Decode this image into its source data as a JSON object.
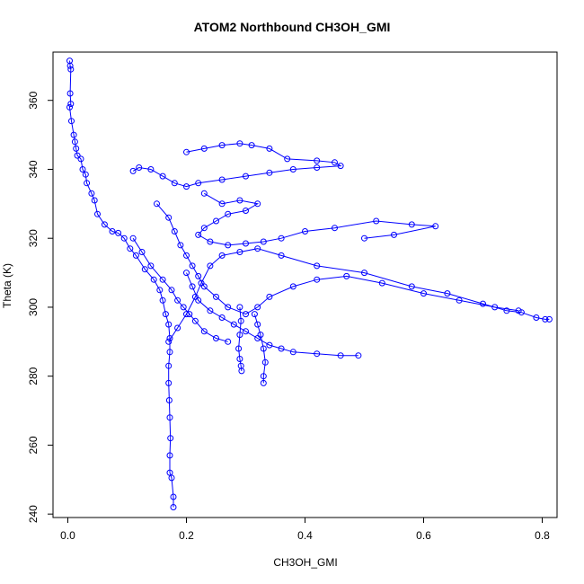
{
  "chart_data": {
    "type": "scatter",
    "title": "ATOM2 Northbound CH3OH_GMI",
    "xlabel": "CH3OH_GMI",
    "ylabel": "Theta (K)",
    "xlim": [
      -0.025,
      0.825
    ],
    "ylim": [
      239.0,
      374.0
    ],
    "xticks": [
      "0.0",
      "0.2",
      "0.4",
      "0.6",
      "0.8"
    ],
    "yticks": [
      "240",
      "260",
      "280",
      "300",
      "320",
      "340",
      "360"
    ],
    "grid": false,
    "legend": "none",
    "series": [
      {
        "marker": "open-circle",
        "line": true,
        "color": "#0000ff",
        "points": [
          [
            0.003,
            371.5
          ],
          [
            0.004,
            370.0
          ],
          [
            0.005,
            369.0
          ],
          [
            0.004,
            362.0
          ],
          [
            0.005,
            359.0
          ],
          [
            0.003,
            358.0
          ],
          [
            0.006,
            354.0
          ],
          [
            0.01,
            350.0
          ],
          [
            0.012,
            348.0
          ],
          [
            0.014,
            346.0
          ],
          [
            0.016,
            344.0
          ],
          [
            0.022,
            343.0
          ],
          [
            0.025,
            340.0
          ],
          [
            0.03,
            338.5
          ],
          [
            0.032,
            336.0
          ],
          [
            0.04,
            333.0
          ],
          [
            0.045,
            331.0
          ],
          [
            0.05,
            327.0
          ],
          [
            0.062,
            324.0
          ],
          [
            0.075,
            322.0
          ],
          [
            0.085,
            321.5
          ],
          [
            0.095,
            320.0
          ],
          [
            0.105,
            317.0
          ],
          [
            0.115,
            315.0
          ],
          [
            0.13,
            311.0
          ],
          [
            0.145,
            308.0
          ],
          [
            0.155,
            305.0
          ],
          [
            0.16,
            302.0
          ],
          [
            0.165,
            298.0
          ],
          [
            0.17,
            295.0
          ],
          [
            0.172,
            291.0
          ],
          [
            0.172,
            287.0
          ],
          [
            0.17,
            283.0
          ],
          [
            0.17,
            278.0
          ],
          [
            0.171,
            273.0
          ],
          [
            0.172,
            268.0
          ],
          [
            0.173,
            262.0
          ],
          [
            0.172,
            257.0
          ],
          [
            0.172,
            252.0
          ],
          [
            0.175,
            250.5
          ],
          [
            0.178,
            245.0
          ],
          [
            0.178,
            242.0
          ]
        ]
      },
      {
        "marker": "open-circle",
        "line": true,
        "color": "#0000ff",
        "points": [
          [
            0.17,
            290.0
          ],
          [
            0.185,
            294.0
          ],
          [
            0.2,
            298.0
          ],
          [
            0.215,
            303.0
          ],
          [
            0.225,
            307.0
          ],
          [
            0.24,
            312.0
          ],
          [
            0.26,
            315.0
          ],
          [
            0.29,
            316.0
          ],
          [
            0.32,
            317.0
          ],
          [
            0.36,
            315.0
          ],
          [
            0.42,
            312.0
          ],
          [
            0.5,
            310.0
          ],
          [
            0.58,
            306.0
          ],
          [
            0.64,
            304.0
          ],
          [
            0.7,
            301.0
          ],
          [
            0.74,
            299.0
          ],
          [
            0.765,
            298.5
          ],
          [
            0.79,
            297.0
          ],
          [
            0.805,
            296.5
          ],
          [
            0.812,
            296.5
          ]
        ]
      },
      {
        "marker": "open-circle",
        "line": true,
        "color": "#0000ff",
        "points": [
          [
            0.2,
            345.0
          ],
          [
            0.23,
            346.0
          ],
          [
            0.26,
            347.0
          ],
          [
            0.29,
            347.5
          ],
          [
            0.31,
            347.0
          ],
          [
            0.34,
            346.0
          ],
          [
            0.37,
            343.0
          ],
          [
            0.42,
            342.5
          ],
          [
            0.45,
            342.0
          ],
          [
            0.46,
            341.0
          ],
          [
            0.42,
            340.5
          ],
          [
            0.38,
            340.0
          ],
          [
            0.34,
            339.0
          ],
          [
            0.3,
            338.0
          ],
          [
            0.26,
            337.0
          ],
          [
            0.22,
            336.0
          ],
          [
            0.2,
            335.0
          ],
          [
            0.18,
            336.0
          ],
          [
            0.16,
            338.0
          ],
          [
            0.14,
            340.0
          ],
          [
            0.12,
            340.5
          ],
          [
            0.11,
            339.5
          ]
        ]
      },
      {
        "marker": "open-circle",
        "line": true,
        "color": "#0000ff",
        "points": [
          [
            0.23,
            333.0
          ],
          [
            0.26,
            330.0
          ],
          [
            0.29,
            331.0
          ],
          [
            0.32,
            330.0
          ],
          [
            0.3,
            328.0
          ],
          [
            0.27,
            327.0
          ],
          [
            0.25,
            325.0
          ],
          [
            0.23,
            323.0
          ],
          [
            0.22,
            321.0
          ],
          [
            0.24,
            319.0
          ],
          [
            0.27,
            318.0
          ],
          [
            0.3,
            318.5
          ],
          [
            0.33,
            319.0
          ],
          [
            0.36,
            320.0
          ],
          [
            0.4,
            322.0
          ],
          [
            0.45,
            323.0
          ],
          [
            0.52,
            325.0
          ],
          [
            0.58,
            324.0
          ],
          [
            0.62,
            323.5
          ],
          [
            0.55,
            321.0
          ],
          [
            0.5,
            320.0
          ]
        ]
      },
      {
        "marker": "open-circle",
        "line": true,
        "color": "#0000ff",
        "points": [
          [
            0.2,
            310.0
          ],
          [
            0.21,
            306.0
          ],
          [
            0.22,
            302.0
          ],
          [
            0.24,
            299.0
          ],
          [
            0.26,
            297.0
          ],
          [
            0.28,
            295.0
          ],
          [
            0.3,
            293.0
          ],
          [
            0.32,
            291.0
          ],
          [
            0.34,
            289.0
          ],
          [
            0.36,
            288.0
          ],
          [
            0.38,
            287.0
          ],
          [
            0.42,
            286.5
          ],
          [
            0.46,
            286.0
          ],
          [
            0.49,
            286.0
          ]
        ]
      },
      {
        "marker": "open-circle",
        "line": true,
        "color": "#0000ff",
        "points": [
          [
            0.29,
            300.0
          ],
          [
            0.292,
            296.0
          ],
          [
            0.29,
            292.0
          ],
          [
            0.288,
            288.0
          ],
          [
            0.29,
            285.0
          ],
          [
            0.292,
            283.0
          ],
          [
            0.293,
            281.5
          ]
        ]
      },
      {
        "marker": "open-circle",
        "line": true,
        "color": "#0000ff",
        "points": [
          [
            0.315,
            298.0
          ],
          [
            0.32,
            295.0
          ],
          [
            0.325,
            292.0
          ],
          [
            0.33,
            288.0
          ],
          [
            0.333,
            284.0
          ],
          [
            0.33,
            280.0
          ],
          [
            0.33,
            278.0
          ]
        ]
      },
      {
        "marker": "open-circle",
        "line": true,
        "color": "#0000ff",
        "points": [
          [
            0.15,
            330.0
          ],
          [
            0.17,
            326.0
          ],
          [
            0.18,
            322.0
          ],
          [
            0.19,
            318.0
          ],
          [
            0.2,
            315.0
          ],
          [
            0.21,
            312.0
          ],
          [
            0.22,
            309.0
          ],
          [
            0.23,
            306.0
          ],
          [
            0.25,
            303.0
          ],
          [
            0.27,
            300.0
          ],
          [
            0.3,
            298.0
          ],
          [
            0.32,
            300.0
          ],
          [
            0.34,
            303.0
          ],
          [
            0.38,
            306.0
          ],
          [
            0.42,
            308.0
          ],
          [
            0.47,
            309.0
          ],
          [
            0.53,
            307.0
          ],
          [
            0.6,
            304.0
          ],
          [
            0.66,
            302.0
          ],
          [
            0.72,
            300.0
          ],
          [
            0.76,
            299.0
          ]
        ]
      },
      {
        "marker": "open-circle",
        "line": true,
        "color": "#0000ff",
        "points": [
          [
            0.11,
            320.0
          ],
          [
            0.125,
            316.0
          ],
          [
            0.14,
            312.0
          ],
          [
            0.16,
            308.0
          ],
          [
            0.175,
            305.0
          ],
          [
            0.185,
            302.0
          ],
          [
            0.195,
            300.0
          ],
          [
            0.205,
            298.0
          ],
          [
            0.215,
            296.0
          ],
          [
            0.23,
            293.0
          ],
          [
            0.25,
            291.0
          ],
          [
            0.27,
            290.0
          ]
        ]
      }
    ]
  }
}
